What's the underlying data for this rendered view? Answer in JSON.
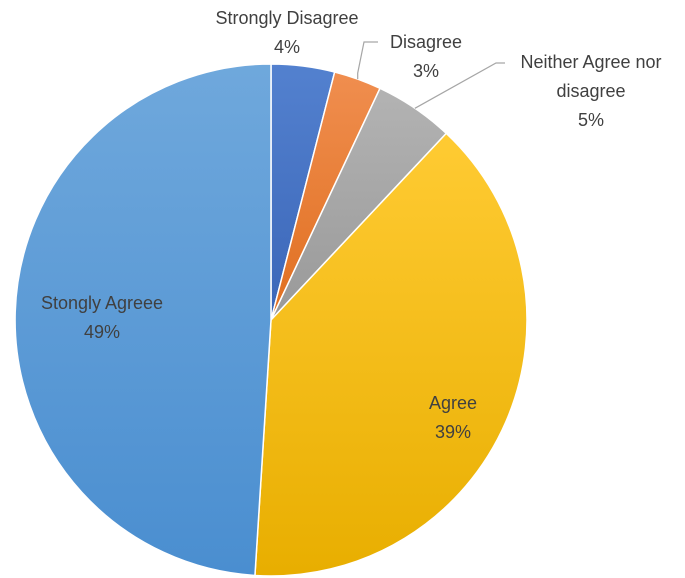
{
  "chart_data": {
    "type": "pie",
    "title": "",
    "slices": [
      {
        "label": "Strongly Disagree",
        "value": 4,
        "value_label": "4%",
        "color": "#4472C4"
      },
      {
        "label": "Disagree",
        "value": 3,
        "value_label": "3%",
        "color": "#ED7D31"
      },
      {
        "label": "Neither Agree nor disagree",
        "label_lines": [
          "Neither Agree nor",
          "disagree"
        ],
        "value": 5,
        "value_label": "5%",
        "color": "#A5A5A5"
      },
      {
        "label": "Agree",
        "value": 39,
        "value_label": "39%",
        "color": "#FFC000"
      },
      {
        "label": "Stongly Agreee",
        "value": 49,
        "value_label": "49%",
        "color": "#5B9BD5"
      }
    ],
    "start_angle_deg": 0,
    "direction": "clockwise",
    "legend": "none",
    "label_color": "#404040",
    "leader_line_color": "#A6A6A6"
  }
}
